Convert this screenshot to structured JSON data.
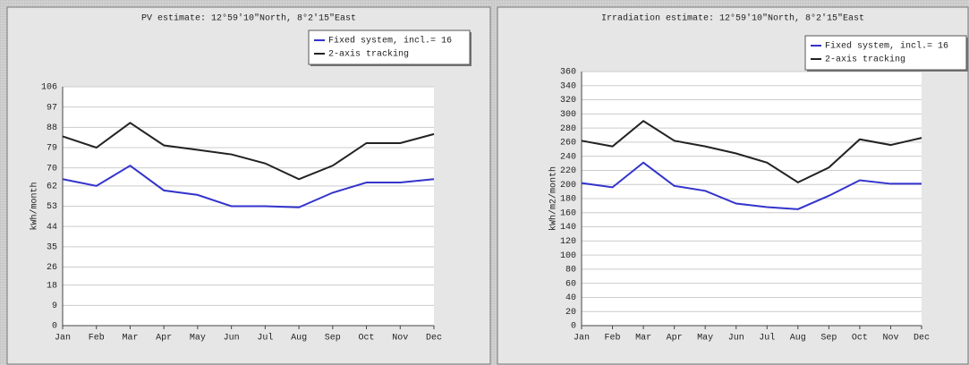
{
  "chart_data": [
    {
      "type": "line",
      "title": "PV estimate:  12°59'10\"North, 8°2'15\"East",
      "ylabel": "kWh/month",
      "categories": [
        "Jan",
        "Feb",
        "Mar",
        "Apr",
        "May",
        "Jun",
        "Jul",
        "Aug",
        "Sep",
        "Oct",
        "Nov",
        "Dec"
      ],
      "series": [
        {
          "name": "Fixed system, incl.= 16",
          "color": "#3333cc",
          "values": [
            65,
            62,
            71,
            60,
            58,
            53,
            53,
            52.5,
            59,
            63.5,
            63.5,
            65
          ]
        },
        {
          "name": "2-axis tracking",
          "color": "#222222",
          "values": [
            84,
            79,
            90,
            80,
            78,
            76,
            72,
            65,
            71,
            81,
            81,
            85
          ]
        }
      ],
      "ylim": [
        0,
        106
      ],
      "yticks": [
        0,
        9,
        18,
        26,
        35,
        44,
        53,
        62,
        70,
        79,
        88,
        97,
        106
      ],
      "grid": true
    },
    {
      "type": "line",
      "title": "Irradiation estimate:  12°59'10\"North, 8°2'15\"East",
      "ylabel": "kWh/m2/month",
      "categories": [
        "Jan",
        "Feb",
        "Mar",
        "Apr",
        "May",
        "Jun",
        "Jul",
        "Aug",
        "Sep",
        "Oct",
        "Nov",
        "Dec"
      ],
      "series": [
        {
          "name": "Fixed system, incl.= 16",
          "color": "#3333cc",
          "values": [
            202,
            196,
            231,
            198,
            191,
            173,
            168,
            165,
            184,
            206,
            201,
            201
          ]
        },
        {
          "name": "2-axis tracking",
          "color": "#222222",
          "values": [
            262,
            254,
            290,
            262,
            254,
            244,
            231,
            203,
            224,
            264,
            256,
            266
          ]
        }
      ],
      "ylim": [
        0,
        360
      ],
      "yticks": [
        0,
        20,
        40,
        60,
        80,
        100,
        120,
        140,
        160,
        180,
        200,
        220,
        240,
        260,
        280,
        300,
        320,
        340,
        360
      ],
      "grid": true
    }
  ]
}
